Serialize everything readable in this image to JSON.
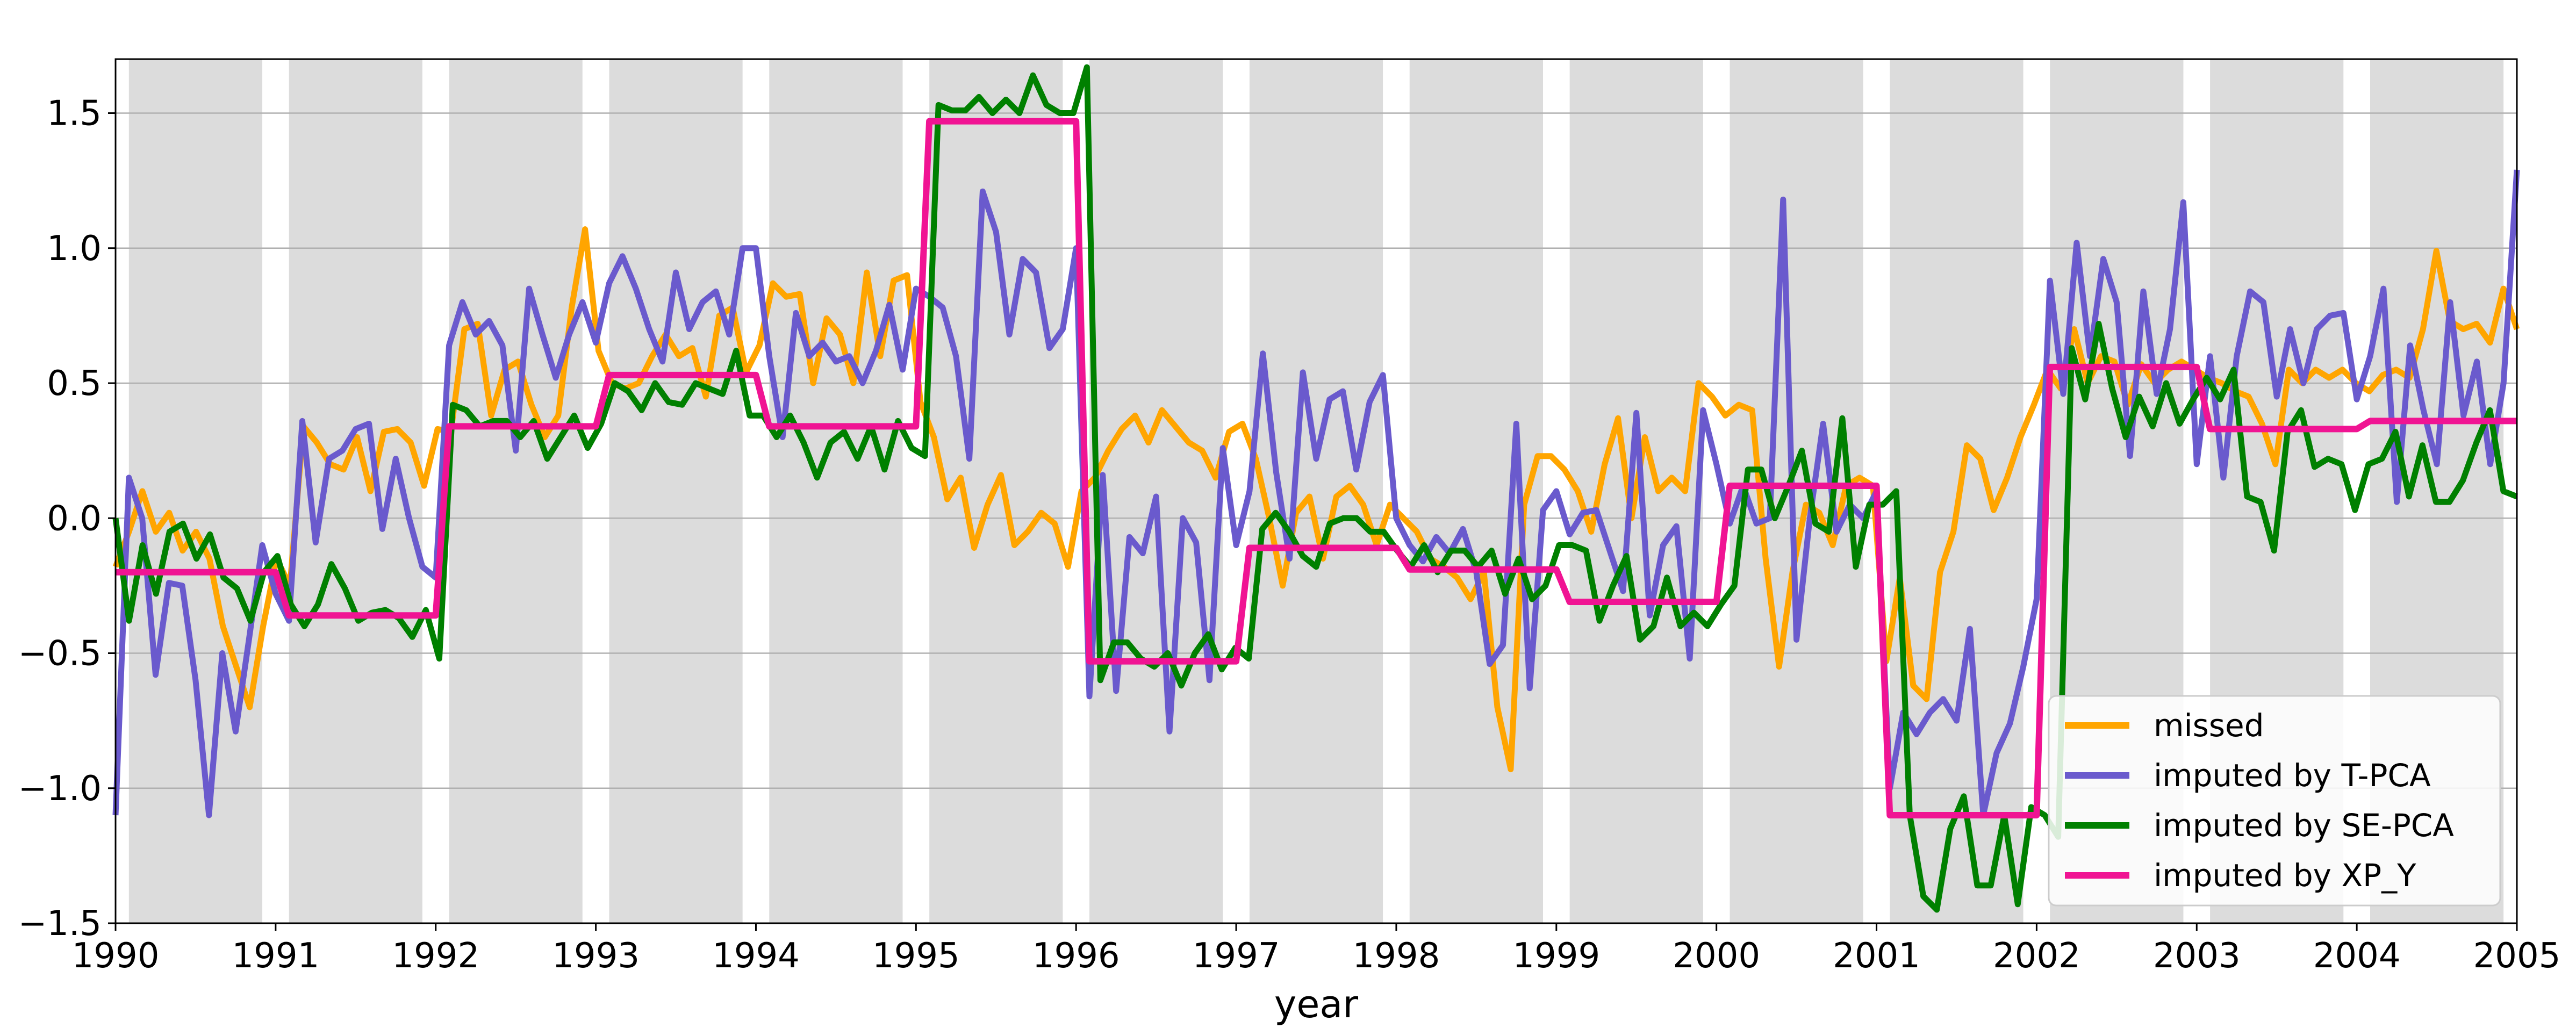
{
  "chart_data": {
    "type": "line",
    "title": "",
    "xlabel": "year",
    "ylabel": "",
    "xlim": [
      1990,
      2005
    ],
    "ylim": [
      -1.5,
      1.7
    ],
    "x_ticks": [
      1990,
      1991,
      1992,
      1993,
      1994,
      1995,
      1996,
      1997,
      1998,
      1999,
      2000,
      2001,
      2002,
      2003,
      2004,
      2005
    ],
    "y_ticks": [
      -1.5,
      -1.0,
      -0.5,
      0.0,
      0.5,
      1.0,
      1.5
    ],
    "y_tick_labels": [
      "−1.5",
      "−1.0",
      "−0.5",
      "0.0",
      "0.5",
      "1.0",
      "1.5"
    ],
    "grid": "horizontal",
    "legend_position": "lower-right",
    "shaded_bands": "one grey band per year, spanning February to November",
    "series": [
      {
        "name": "missed",
        "color": "#FFA500",
        "values": [
          -0.18,
          -0.05,
          0.1,
          -0.05,
          0.02,
          -0.12,
          -0.05,
          -0.15,
          -0.4,
          -0.55,
          -0.7,
          -0.4,
          -0.15,
          -0.25,
          0.34,
          0.28,
          0.2,
          0.18,
          0.3,
          0.1,
          0.32,
          0.33,
          0.28,
          0.12,
          0.33,
          0.32,
          0.7,
          0.72,
          0.38,
          0.55,
          0.58,
          0.42,
          0.3,
          0.38,
          0.78,
          1.07,
          0.62,
          0.5,
          0.48,
          0.5,
          0.6,
          0.68,
          0.6,
          0.63,
          0.45,
          0.75,
          0.78,
          0.54,
          0.64,
          0.87,
          0.82,
          0.83,
          0.5,
          0.74,
          0.68,
          0.5,
          0.91,
          0.6,
          0.88,
          0.9,
          0.43,
          0.3,
          0.07,
          0.15,
          -0.11,
          0.05,
          0.16,
          -0.1,
          -0.05,
          0.02,
          -0.02,
          -0.18,
          0.1,
          0.15,
          0.25,
          0.33,
          0.38,
          0.28,
          0.4,
          0.34,
          0.28,
          0.25,
          0.15,
          0.32,
          0.35,
          0.22,
          0.0,
          -0.25,
          0.02,
          0.08,
          -0.15,
          0.08,
          0.12,
          0.05,
          -0.1,
          0.05,
          0.0,
          -0.05,
          -0.15,
          -0.18,
          -0.22,
          -0.3,
          -0.2,
          -0.7,
          -0.93,
          0.05,
          0.23,
          0.23,
          0.18,
          0.1,
          -0.05,
          0.2,
          0.37,
          0.0,
          0.3,
          0.1,
          0.15,
          0.1,
          0.5,
          0.45,
          0.38,
          0.42,
          0.4,
          -0.15,
          -0.55,
          -0.2,
          0.05,
          0.02,
          -0.1,
          0.12,
          0.15,
          0.12,
          -0.53,
          -0.22,
          -0.62,
          -0.67,
          -0.2,
          -0.05,
          0.27,
          0.22,
          0.03,
          0.15,
          0.3,
          0.42,
          0.55,
          0.48,
          0.7,
          0.5,
          0.6,
          0.58,
          0.42,
          0.57,
          0.5,
          0.55,
          0.58,
          0.55,
          0.52,
          0.5,
          0.47,
          0.45,
          0.35,
          0.2,
          0.55,
          0.5,
          0.55,
          0.52,
          0.55,
          0.5,
          0.47,
          0.53,
          0.55,
          0.52,
          0.7,
          0.99,
          0.73,
          0.7,
          0.72,
          0.65,
          0.85,
          0.7
        ]
      },
      {
        "name": "imputed by T-PCA",
        "color": "#6A5ACD",
        "values": [
          -1.1,
          0.15,
          0.0,
          -0.58,
          -0.24,
          -0.25,
          -0.6,
          -1.1,
          -0.5,
          -0.79,
          -0.45,
          -0.1,
          -0.28,
          -0.38,
          0.36,
          -0.09,
          0.22,
          0.25,
          0.33,
          0.35,
          -0.04,
          0.22,
          0.0,
          -0.18,
          -0.22,
          0.64,
          0.8,
          0.68,
          0.73,
          0.64,
          0.25,
          0.85,
          0.68,
          0.52,
          0.68,
          0.8,
          0.65,
          0.87,
          0.97,
          0.85,
          0.7,
          0.58,
          0.91,
          0.7,
          0.8,
          0.84,
          0.68,
          1.0,
          1.0,
          0.6,
          0.3,
          0.76,
          0.6,
          0.65,
          0.58,
          0.6,
          0.5,
          0.62,
          0.79,
          0.55,
          0.85,
          0.82,
          0.78,
          0.6,
          0.22,
          1.21,
          1.06,
          0.68,
          0.96,
          0.91,
          0.63,
          0.7,
          1.0,
          -0.66,
          0.16,
          -0.64,
          -0.07,
          -0.13,
          0.08,
          -0.79,
          0.0,
          -0.09,
          -0.6,
          0.26,
          -0.1,
          0.1,
          0.61,
          0.17,
          -0.15,
          0.54,
          0.22,
          0.44,
          0.47,
          0.18,
          0.43,
          0.53,
          0.0,
          -0.1,
          -0.16,
          -0.07,
          -0.13,
          -0.04,
          -0.2,
          -0.54,
          -0.47,
          0.35,
          -0.63,
          0.03,
          0.1,
          -0.06,
          0.02,
          0.03,
          -0.12,
          -0.27,
          0.39,
          -0.36,
          -0.1,
          -0.03,
          -0.52,
          0.4,
          0.2,
          -0.02,
          0.12,
          -0.02,
          0.0,
          1.18,
          -0.45,
          0.0,
          0.35,
          -0.05,
          0.05,
          0.0,
          0.1,
          -1.0,
          -0.72,
          -0.8,
          -0.72,
          -0.67,
          -0.75,
          -0.41,
          -1.1,
          -0.87,
          -0.76,
          -0.55,
          -0.3,
          0.88,
          0.46,
          1.02,
          0.6,
          0.96,
          0.8,
          0.23,
          0.84,
          0.46,
          0.7,
          1.17,
          0.2,
          0.6,
          0.15,
          0.6,
          0.84,
          0.8,
          0.45,
          0.7,
          0.5,
          0.7,
          0.75,
          0.76,
          0.44,
          0.6,
          0.85,
          0.06,
          0.64,
          0.4,
          0.2,
          0.8,
          0.38,
          0.58,
          0.2,
          0.5,
          1.29
        ]
      },
      {
        "name": "imputed by SE-PCA",
        "color": "#008000",
        "values": [
          0.0,
          -0.38,
          -0.1,
          -0.28,
          -0.05,
          -0.02,
          -0.15,
          -0.06,
          -0.22,
          -0.26,
          -0.38,
          -0.2,
          -0.14,
          -0.32,
          -0.4,
          -0.32,
          -0.17,
          -0.26,
          -0.38,
          -0.35,
          -0.34,
          -0.37,
          -0.44,
          -0.34,
          -0.52,
          0.42,
          0.4,
          0.34,
          0.36,
          0.36,
          0.3,
          0.36,
          0.22,
          0.3,
          0.38,
          0.26,
          0.35,
          0.5,
          0.47,
          0.4,
          0.5,
          0.43,
          0.42,
          0.5,
          0.48,
          0.46,
          0.62,
          0.38,
          0.38,
          0.3,
          0.38,
          0.28,
          0.15,
          0.28,
          0.32,
          0.22,
          0.34,
          0.18,
          0.36,
          0.26,
          0.23,
          1.53,
          1.51,
          1.51,
          1.56,
          1.5,
          1.55,
          1.5,
          1.64,
          1.53,
          1.5,
          1.5,
          1.67,
          -0.6,
          -0.46,
          -0.46,
          -0.52,
          -0.55,
          -0.5,
          -0.62,
          -0.5,
          -0.43,
          -0.56,
          -0.48,
          -0.52,
          -0.04,
          0.02,
          -0.05,
          -0.14,
          -0.18,
          -0.02,
          0.0,
          0.0,
          -0.05,
          -0.05,
          -0.12,
          -0.18,
          -0.1,
          -0.2,
          -0.12,
          -0.12,
          -0.18,
          -0.12,
          -0.28,
          -0.15,
          -0.3,
          -0.25,
          -0.1,
          -0.1,
          -0.12,
          -0.38,
          -0.25,
          -0.14,
          -0.45,
          -0.4,
          -0.22,
          -0.4,
          -0.35,
          -0.4,
          -0.32,
          -0.25,
          0.18,
          0.18,
          0.0,
          0.12,
          0.25,
          -0.02,
          -0.05,
          0.37,
          -0.18,
          0.05,
          0.05,
          0.1,
          -1.1,
          -1.4,
          -1.45,
          -1.15,
          -1.03,
          -1.36,
          -1.36,
          -1.1,
          -1.43,
          -1.07,
          -1.1,
          -1.18,
          0.63,
          0.44,
          0.72,
          0.48,
          0.3,
          0.45,
          0.34,
          0.5,
          0.35,
          0.44,
          0.52,
          0.44,
          0.55,
          0.08,
          0.06,
          -0.12,
          0.32,
          0.4,
          0.19,
          0.22,
          0.2,
          0.03,
          0.2,
          0.22,
          0.32,
          0.08,
          0.27,
          0.06,
          0.06,
          0.14,
          0.28,
          0.4,
          0.1,
          0.08
        ]
      },
      {
        "name": "imputed by XP_Y",
        "color": "#F01493",
        "step": true,
        "values": [
          -0.2,
          -0.36,
          0.34,
          0.53,
          0.34,
          1.47,
          -0.53,
          -0.11,
          -0.19,
          -0.31,
          0.12,
          -1.1,
          0.56,
          0.33,
          0.36
        ],
        "transition_slope_years": 0.083
      }
    ]
  }
}
